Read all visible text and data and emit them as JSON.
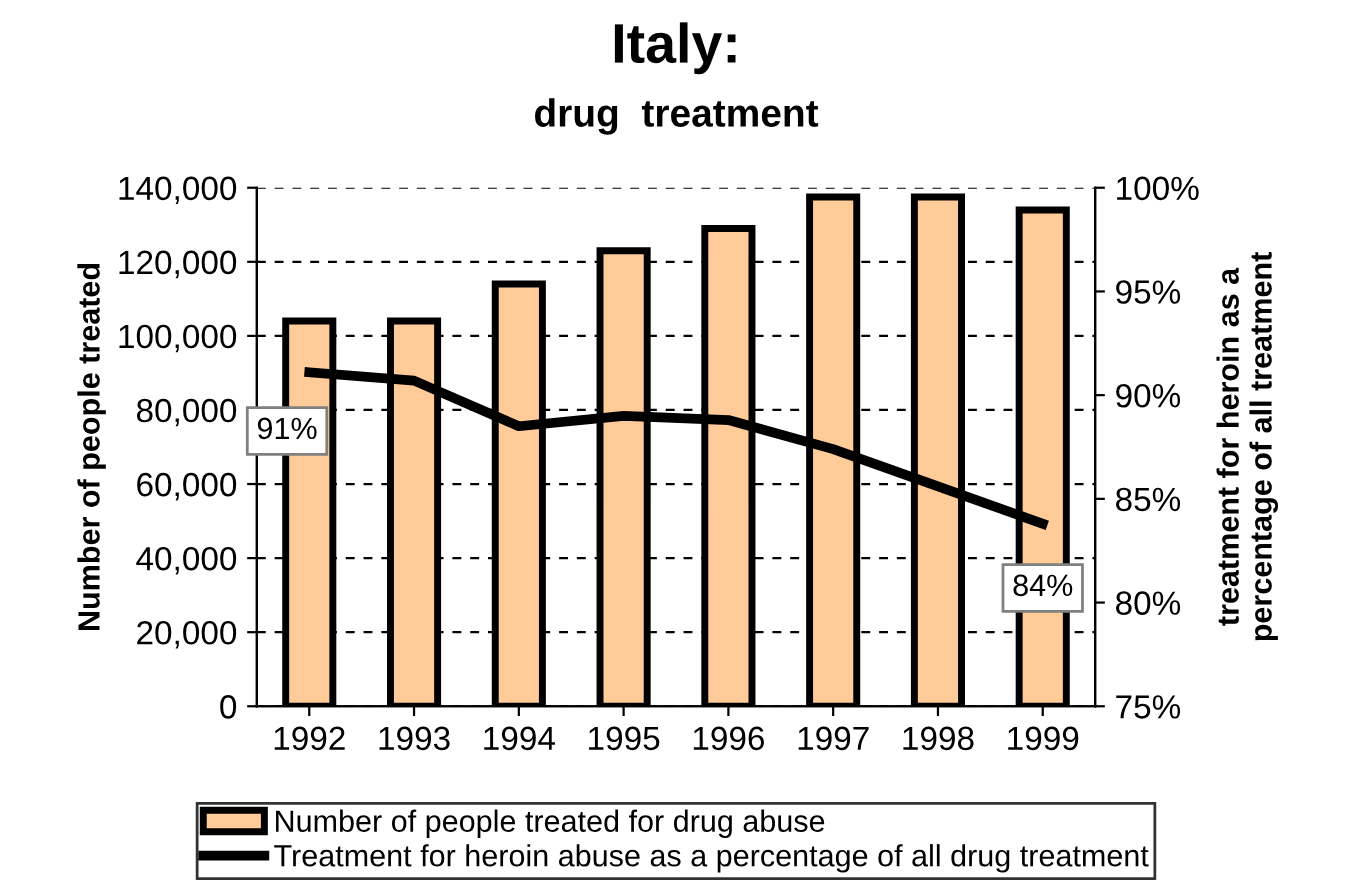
{
  "chart_data": {
    "type": "bar",
    "title": "Italy:",
    "subtitle": "drug  treatment",
    "ylabel": "Number of people treated",
    "y2label": "treatment for heroin as a\npercentage of all treatment",
    "categories": [
      "1992",
      "1993",
      "1994",
      "1995",
      "1996",
      "1997",
      "1998",
      "1999"
    ],
    "series": [
      {
        "name": "Number of people treated for drug abuse",
        "color": "#ffcc99",
        "values": [
          104000,
          104000,
          114000,
          123000,
          129000,
          137500,
          137500,
          134000
        ]
      },
      {
        "name": "Treatment for heroin abuse as a percentage of all drug treatment",
        "type": "line",
        "axis": "y2",
        "color": "#000000",
        "values": [
          91.1,
          90.7,
          88.5,
          89.0,
          88.8,
          87.4,
          85.6,
          83.8
        ],
        "value_labels": [
          "91%",
          null,
          null,
          null,
          null,
          null,
          null,
          "84%"
        ]
      }
    ],
    "ylim": [
      0,
      140000
    ],
    "yticks": [
      {
        "value": 0,
        "label": "0"
      },
      {
        "value": 20000,
        "label": "20,000"
      },
      {
        "value": 40000,
        "label": "40,000"
      },
      {
        "value": 60000,
        "label": "60,000"
      },
      {
        "value": 80000,
        "label": "80,000"
      },
      {
        "value": 100000,
        "label": "100,000"
      },
      {
        "value": 120000,
        "label": "120,000"
      },
      {
        "value": 140000,
        "label": "140,000"
      }
    ],
    "y2lim": [
      75,
      100
    ],
    "y2ticks": [
      {
        "value": 75,
        "label": "75%"
      },
      {
        "value": 80,
        "label": "80%"
      },
      {
        "value": 85,
        "label": "85%"
      },
      {
        "value": 90,
        "label": "90%"
      },
      {
        "value": 95,
        "label": "95%"
      },
      {
        "value": 100,
        "label": "100%"
      }
    ],
    "grid": "y",
    "legend": "bottom",
    "marker": "none",
    "line_style": "solid"
  }
}
